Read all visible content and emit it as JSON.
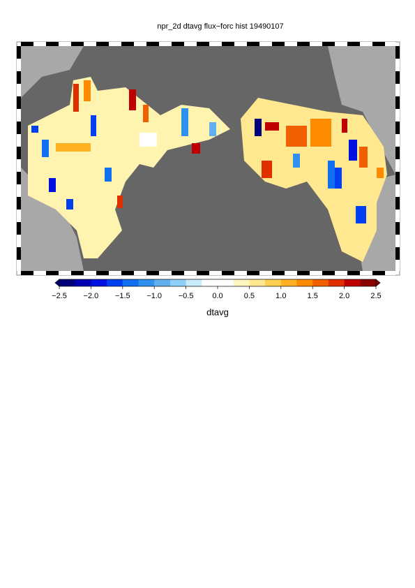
{
  "title": "npr_2d dtavg flux−forc hist 19490107",
  "colorbar": {
    "label": "dtavg",
    "range": [
      -2.5,
      2.5
    ],
    "ticks": [
      {
        "value": -2.5,
        "label": "−2.5"
      },
      {
        "value": -2.0,
        "label": "−2.0"
      },
      {
        "value": -1.5,
        "label": "−1.5"
      },
      {
        "value": -1.0,
        "label": "−1.0"
      },
      {
        "value": -0.5,
        "label": "−0.5"
      },
      {
        "value": 0.0,
        "label": "0.0"
      },
      {
        "value": 0.5,
        "label": "0.5"
      },
      {
        "value": 1.0,
        "label": "1.0"
      },
      {
        "value": 1.5,
        "label": "1.5"
      },
      {
        "value": 2.0,
        "label": "2.0"
      },
      {
        "value": 2.5,
        "label": "2.5"
      }
    ],
    "colors": [
      "#00007f",
      "#0000b0",
      "#0010e0",
      "#0040f0",
      "#1070f0",
      "#3090f0",
      "#60b0f0",
      "#90d0f8",
      "#c8ecfc",
      "#ffffff",
      "#ffffff",
      "#fff5c0",
      "#ffe890",
      "#ffd050",
      "#ffb020",
      "#ff8a00",
      "#f06000",
      "#e03000",
      "#c00000",
      "#8b0000"
    ]
  }
}
